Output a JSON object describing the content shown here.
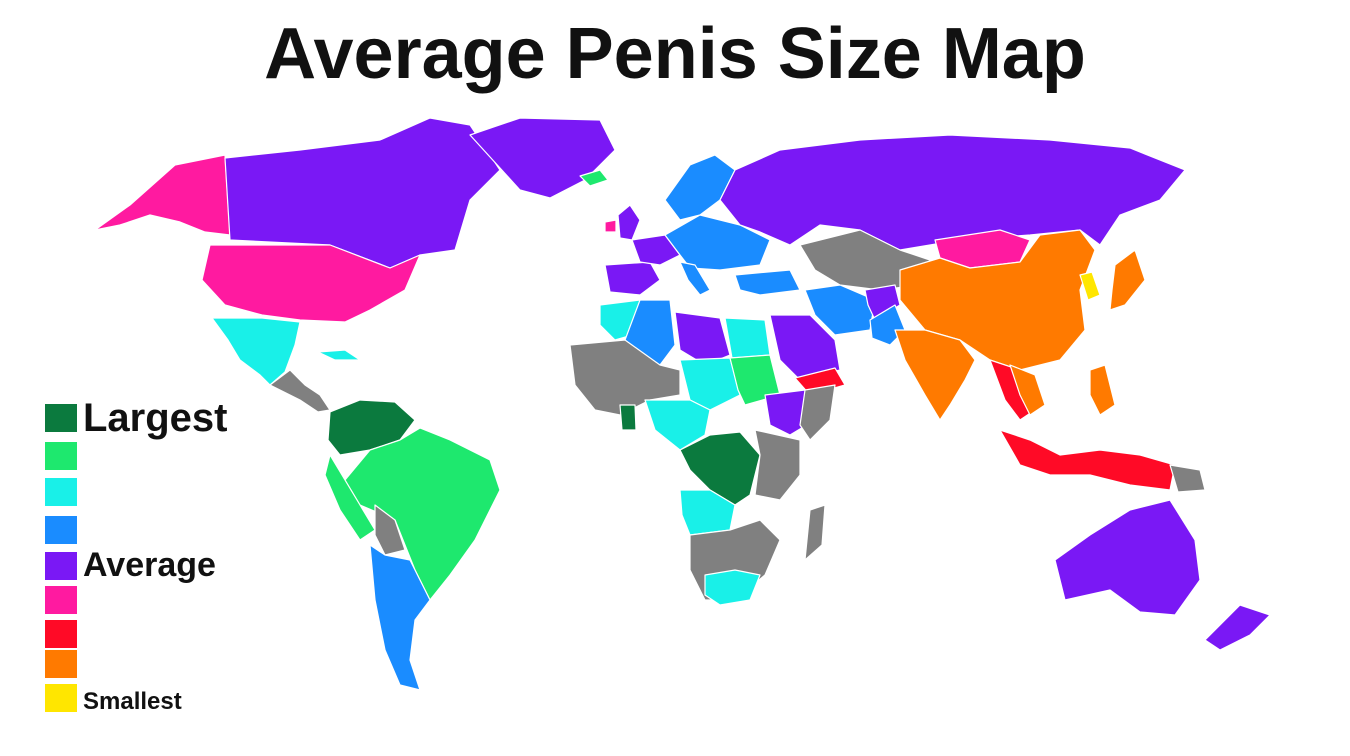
{
  "title": "Average Penis Size Map",
  "legend": {
    "items": [
      {
        "label": "Largest",
        "color": "#0b7a3e"
      },
      {
        "label": "",
        "color": "#1ee86e"
      },
      {
        "label": "",
        "color": "#19f0e8"
      },
      {
        "label": "",
        "color": "#1a8cff"
      },
      {
        "label": "Average",
        "color": "#7a18f5"
      },
      {
        "label": "",
        "color": "#ff1aa0"
      },
      {
        "label": "",
        "color": "#ff0a26"
      },
      {
        "label": "",
        "color": "#ff7a00"
      },
      {
        "label": "Smallest",
        "color": "#ffe600"
      }
    ]
  },
  "colors": {
    "no_data": "#808080",
    "background": "#ffffff",
    "border": "#ffffff"
  }
}
